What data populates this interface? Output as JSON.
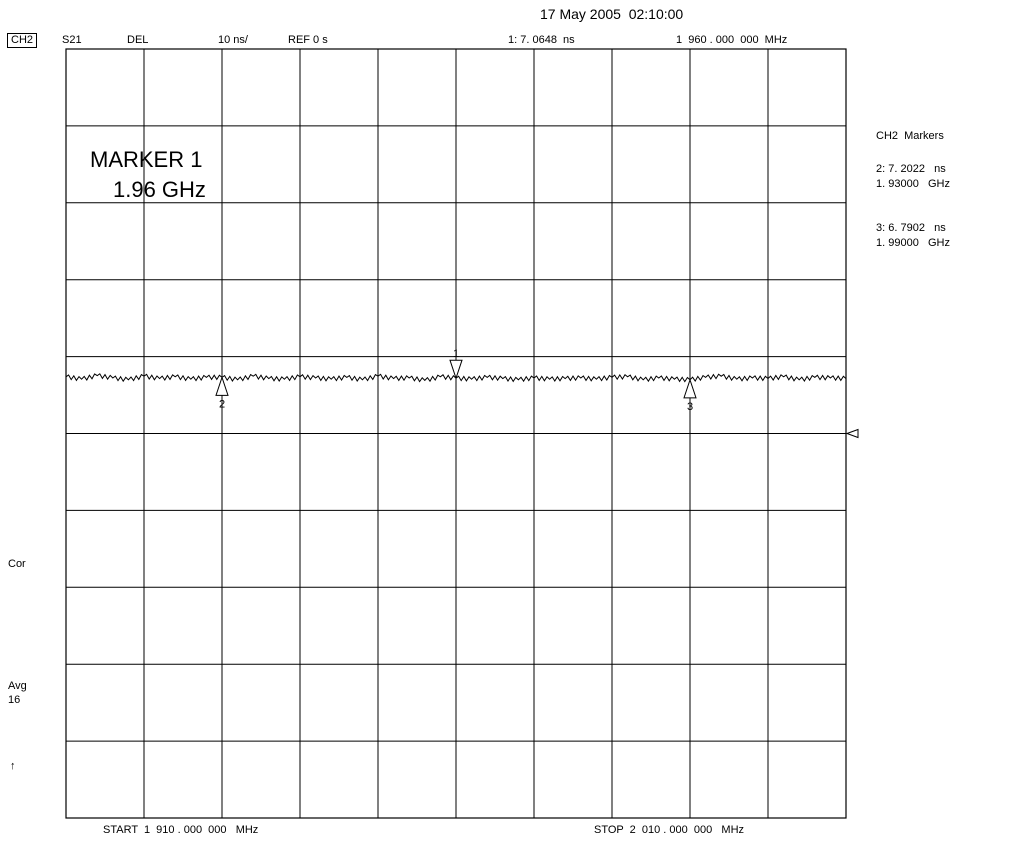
{
  "header": {
    "datetime": "17 May 2005  02:10:00",
    "channel": "CH2",
    "param": "S21",
    "format": "DEL",
    "scale": "10 ns/",
    "ref": "REF 0 s",
    "active_marker_readout": "1: 7. 0648  ns",
    "active_marker_freq": "1  960 . 000  000  MHz"
  },
  "annotation": {
    "title_line1": "MARKER 1",
    "title_line2": "1.96 GHz"
  },
  "markers_panel": {
    "title": "CH2  Markers",
    "items": [
      {
        "line1": "2: 7. 2022   ns",
        "line2": "1. 93000   GHz"
      },
      {
        "line1": "3: 6. 7902   ns",
        "line2": "1. 99000   GHz"
      }
    ]
  },
  "left_status": {
    "cor": "Cor",
    "avg": "Avg",
    "avg_count": "16",
    "arrow": "↑"
  },
  "footer": {
    "start": "START  1  910 . 000  000   MHz",
    "stop": "STOP  2  010 . 000  000   MHz"
  },
  "chart_data": {
    "type": "line",
    "x_start_mhz": 1910,
    "x_stop_mhz": 2010,
    "y_scale_ns_per_div": 10,
    "y_ref_ns": 0,
    "grid": true,
    "grid_divisions": {
      "x": 10,
      "y": 10
    },
    "series": [
      {
        "x_mhz": [
          1910,
          1912,
          1914,
          1916,
          1918,
          1920,
          1922,
          1924,
          1926,
          1928,
          1930,
          1932,
          1934,
          1936,
          1938,
          1940,
          1942,
          1944,
          1946,
          1948,
          1950,
          1952,
          1954,
          1956,
          1958,
          1960,
          1962,
          1964,
          1966,
          1968,
          1970,
          1972,
          1974,
          1976,
          1978,
          1980,
          1982,
          1984,
          1986,
          1988,
          1990,
          1992,
          1994,
          1996,
          1998,
          2000,
          2002,
          2004,
          2006,
          2008,
          2010
        ],
        "y_ns": [
          7.3,
          6.9,
          7.5,
          7.1,
          6.8,
          7.4,
          7.0,
          7.3,
          6.9,
          7.2,
          7.2,
          6.8,
          7.4,
          7.0,
          6.9,
          7.3,
          7.1,
          6.9,
          7.2,
          6.8,
          7.4,
          7.0,
          7.1,
          6.7,
          7.3,
          7.06,
          6.9,
          7.2,
          7.0,
          6.8,
          7.1,
          6.9,
          7.0,
          7.1,
          6.9,
          7.2,
          7.3,
          6.8,
          7.1,
          6.9,
          6.8,
          7.2,
          7.4,
          6.9,
          7.1,
          7.0,
          7.3,
          6.8,
          7.2,
          7.1,
          7.0
        ]
      }
    ],
    "markers": [
      {
        "label": "1",
        "x_mhz": 1960,
        "y_ns": 7.0648,
        "orientation": "down"
      },
      {
        "label": "2",
        "x_mhz": 1930,
        "y_ns": 7.2022,
        "orientation": "up"
      },
      {
        "label": "3",
        "x_mhz": 1990,
        "y_ns": 6.7902,
        "orientation": "up"
      }
    ],
    "reference_level_ns": 0
  }
}
